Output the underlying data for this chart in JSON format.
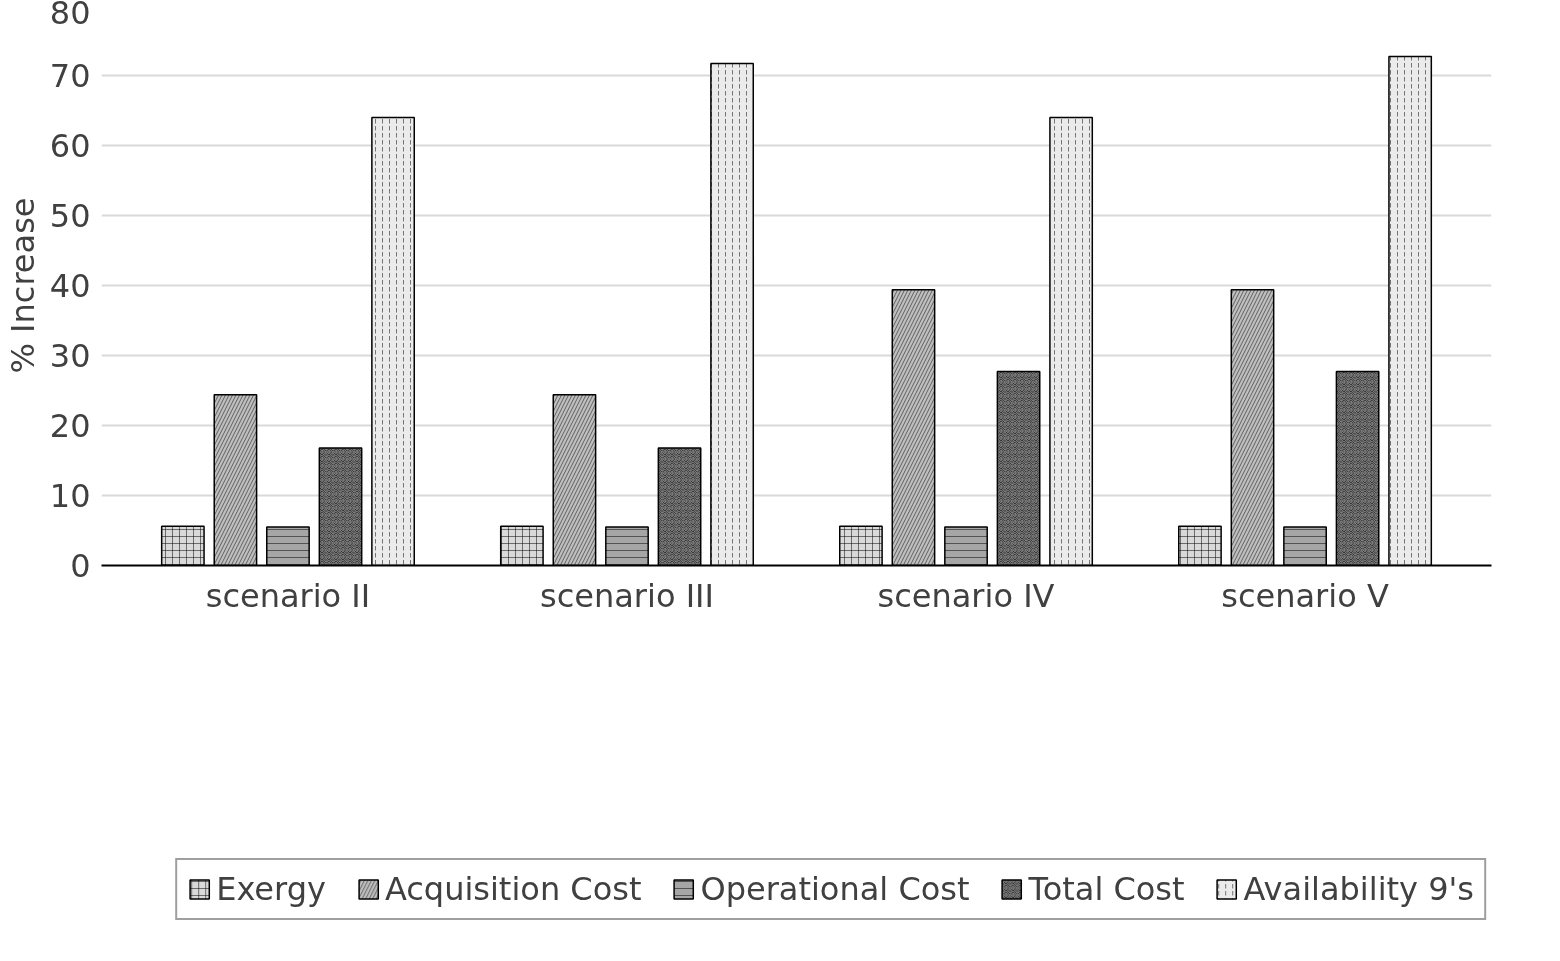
{
  "chart_data": {
    "type": "bar",
    "ylabel": "% Increase",
    "categories": [
      "scenario II",
      "scenario III",
      "scenario IV",
      "scenario V"
    ],
    "series": [
      {
        "name": "Exergy",
        "color": "#d9d9d9",
        "values": [
          5.6,
          5.6,
          5.6,
          5.6
        ]
      },
      {
        "name": "Acquisition Cost",
        "color": "#bfbfbf",
        "values": [
          24.4,
          24.4,
          39.4,
          39.4
        ]
      },
      {
        "name": "Operational Cost",
        "color": "#a6a6a6",
        "values": [
          5.5,
          5.5,
          5.5,
          5.5
        ]
      },
      {
        "name": "Total Cost",
        "color": "#262626",
        "values": [
          16.8,
          16.8,
          27.7,
          27.7
        ]
      },
      {
        "name": "Availability 9's",
        "color": "#ebebeb",
        "values": [
          64,
          71.7,
          64,
          72.7
        ]
      }
    ],
    "ylim": [
      0,
      80
    ],
    "yticks": [
      0,
      10,
      20,
      30,
      40,
      50,
      60,
      70,
      80
    ],
    "grid": "y",
    "legend": "bottom"
  }
}
